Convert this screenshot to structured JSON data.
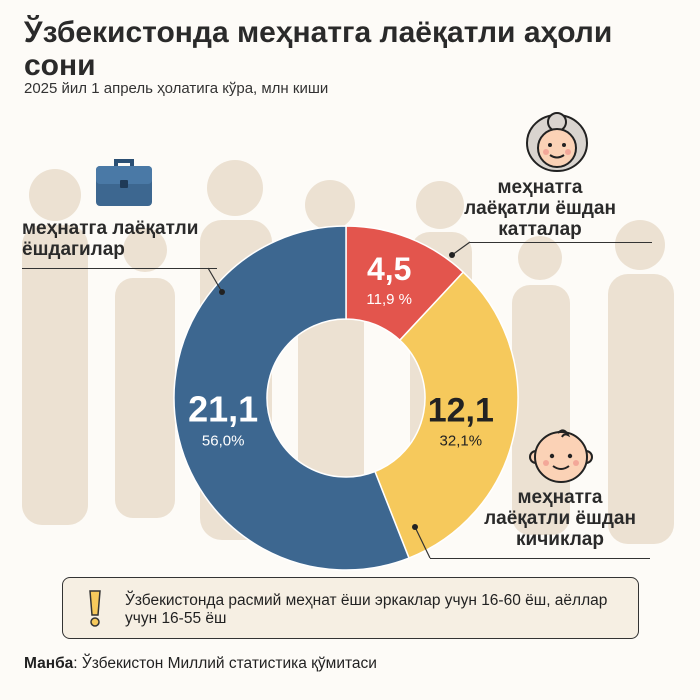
{
  "header": {
    "title": "Ўзбекистонда меҳнатга лаёқатли аҳоли сони",
    "subtitle": "2025 йил 1 апрель ҳолатига кўра, млн киши"
  },
  "chart_data": {
    "type": "donut",
    "unit": "млн киши",
    "start_angle_deg": 0,
    "series": [
      {
        "key": "older",
        "label_lines": [
          "меҳнатга",
          "лаёқатли ёшдан",
          "катталар"
        ],
        "value": 4.5,
        "value_label": "4,5",
        "percent": 11.9,
        "percent_label": "11,9 %",
        "color": "#e3554d"
      },
      {
        "key": "younger",
        "label_lines": [
          "меҳнатга",
          "лаёқатли ёшдан",
          "кичиклар"
        ],
        "value": 12.1,
        "value_label": "12,1",
        "percent": 32.1,
        "percent_label": "32,1%",
        "color": "#f6c95c"
      },
      {
        "key": "working",
        "label_lines": [
          "меҳнатга лаёқатли",
          "ёшдагилар"
        ],
        "value": 21.1,
        "value_label": "21,1",
        "percent": 56.0,
        "percent_label": "56,0%",
        "color": "#3d6790"
      }
    ]
  },
  "note": {
    "text": "Ўзбекистонда расмий меҳнат ёши эркаклар учун 16-60 ёш, аёллар учун 16-55 ёш",
    "icon": "exclamation-icon"
  },
  "source": {
    "label": "Манба",
    "text": ": Ўзбекистон Миллий статистика қўмитаси"
  },
  "icons": {
    "working": "briefcase-icon",
    "older": "grandmother-icon",
    "younger": "baby-icon"
  },
  "colors": {
    "background": "#fdfbf7",
    "silhouettes": "#ece1d2",
    "note_background": "#f6efe3"
  }
}
